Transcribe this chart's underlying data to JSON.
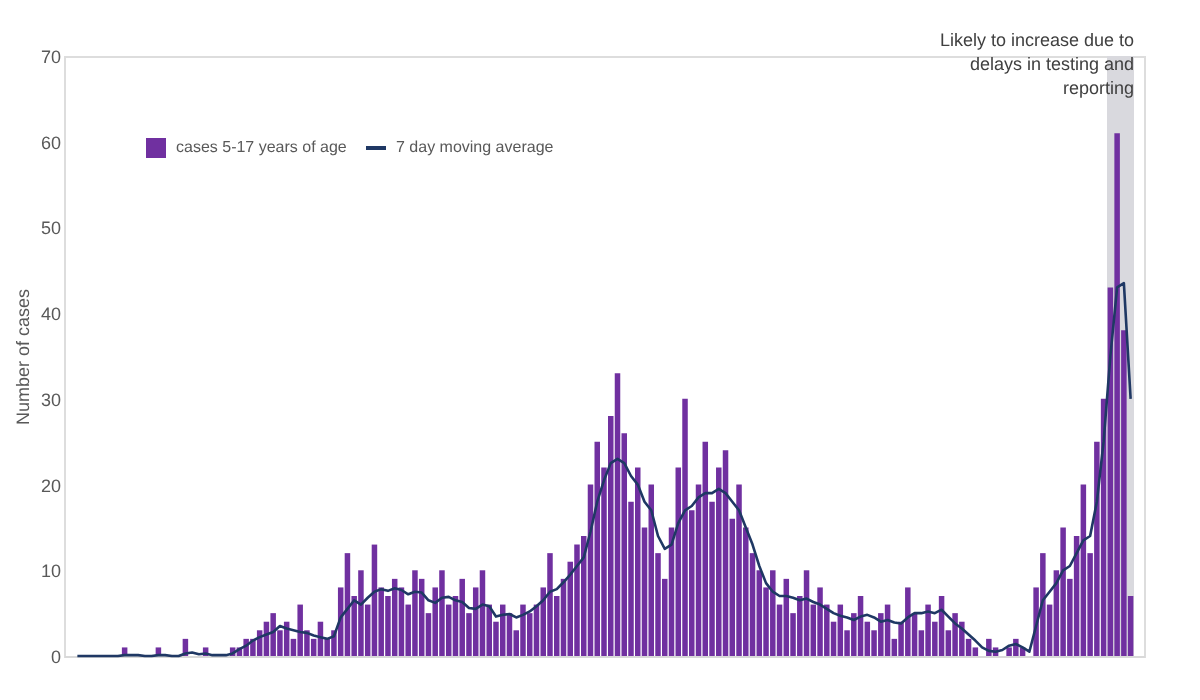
{
  "chart_data": {
    "type": "bar",
    "ylabel": "Number of cases",
    "categories": [
      null,
      null,
      null,
      null,
      null,
      null,
      null,
      null,
      null,
      null,
      null,
      null,
      null,
      null,
      null,
      null,
      null,
      null,
      null,
      null,
      null,
      null,
      null,
      null,
      null,
      null,
      null,
      null,
      null,
      null,
      null,
      null,
      null,
      null,
      null,
      null,
      null,
      null,
      null,
      null,
      null,
      null,
      null,
      null,
      null,
      null,
      null,
      null,
      null,
      null,
      null,
      null,
      null,
      null,
      null,
      null,
      null,
      null,
      null,
      null,
      null,
      null,
      null,
      null,
      null,
      null,
      null,
      null,
      null,
      null,
      null,
      null,
      null,
      null,
      null,
      null,
      null,
      null,
      null,
      null,
      null,
      null,
      null,
      null,
      null,
      null,
      null,
      null,
      null,
      null,
      null,
      null,
      null,
      null,
      null,
      null,
      null,
      null,
      null,
      null,
      null,
      null,
      null,
      null,
      null,
      null,
      null,
      null,
      null,
      null,
      null,
      null,
      null,
      null,
      null,
      null,
      null,
      null,
      null,
      null,
      null,
      null,
      null,
      null,
      null,
      null,
      null,
      null,
      null,
      null,
      null,
      null,
      null,
      null,
      null,
      null,
      null,
      null,
      null,
      null,
      null,
      null,
      null,
      null,
      null,
      null,
      null,
      null,
      null,
      null,
      null,
      null,
      null,
      null,
      null,
      null,
      null
    ],
    "series": [
      {
        "name": "cases 5-17 years of age",
        "color": "#7030a0",
        "values": [
          0,
          0,
          0,
          0,
          0,
          0,
          0,
          1,
          0,
          0,
          0,
          0,
          1,
          0,
          0,
          0,
          2,
          0,
          0,
          1,
          0,
          0,
          0,
          1,
          1,
          2,
          2,
          3,
          4,
          5,
          3,
          4,
          2,
          6,
          3,
          2,
          4,
          2,
          3,
          8,
          12,
          7,
          10,
          6,
          13,
          8,
          7,
          9,
          8,
          6,
          10,
          9,
          5,
          8,
          10,
          6,
          7,
          9,
          5,
          8,
          10,
          6,
          4,
          6,
          5,
          3,
          6,
          5,
          6,
          8,
          12,
          7,
          9,
          11,
          13,
          14,
          20,
          25,
          22,
          28,
          33,
          26,
          18,
          22,
          15,
          20,
          12,
          9,
          15,
          22,
          30,
          17,
          20,
          25,
          18,
          22,
          24,
          16,
          20,
          15,
          12,
          10,
          8,
          10,
          6,
          9,
          5,
          7,
          10,
          6,
          8,
          6,
          4,
          6,
          3,
          5,
          7,
          4,
          3,
          5,
          6,
          2,
          4,
          8,
          5,
          3,
          6,
          4,
          7,
          3,
          5,
          4,
          2,
          1,
          0,
          2,
          1,
          0,
          1,
          2,
          1,
          0,
          8,
          12,
          6,
          10,
          15,
          9,
          14,
          20,
          12,
          25,
          30,
          43,
          61,
          38,
          7
        ]
      },
      {
        "name": "7 day moving average",
        "type": "line",
        "color": "#1f3864",
        "values": [
          0,
          0,
          0,
          0,
          0,
          0,
          0,
          0.1,
          0.1,
          0.1,
          0,
          0,
          0.1,
          0.1,
          0,
          0,
          0.3,
          0.4,
          0.2,
          0.3,
          0.1,
          0.1,
          0.1,
          0.3,
          0.8,
          1.2,
          1.8,
          2.2,
          2.5,
          2.8,
          3.5,
          3.2,
          3,
          2.8,
          2.7,
          2.4,
          2.2,
          2,
          2.3,
          4.5,
          5.5,
          6.5,
          6,
          6.8,
          7.5,
          7.8,
          7.6,
          7.9,
          7.7,
          7.2,
          7.5,
          7.4,
          6.5,
          6.2,
          6.8,
          6.9,
          6.5,
          6.3,
          5.6,
          5.5,
          6,
          5.8,
          4.6,
          4.8,
          4.9,
          4.5,
          4.8,
          5.2,
          5.8,
          6.5,
          7.5,
          7.8,
          8.6,
          9.5,
          10.5,
          11.5,
          14.5,
          18,
          20.5,
          22.5,
          23,
          22.5,
          21,
          20,
          18,
          17,
          14,
          12.5,
          13,
          15.5,
          17,
          17.5,
          18.5,
          19,
          19,
          19.5,
          19,
          18,
          17,
          15,
          13,
          10.5,
          8.5,
          7.5,
          7,
          7,
          6.8,
          6.5,
          6.7,
          6.3,
          6,
          5.5,
          5,
          4.7,
          4.5,
          4.2,
          4.6,
          4.8,
          4.5,
          4,
          4.2,
          3.9,
          3.8,
          4.5,
          5,
          5,
          5.2,
          5,
          5.4,
          4.6,
          3.8,
          3.2,
          2.5,
          1.8,
          1,
          0.6,
          0.5,
          0.7,
          1.2,
          1.4,
          1,
          0.5,
          3.5,
          6.5,
          7.5,
          8.5,
          10,
          10.5,
          12,
          13.5,
          14,
          18,
          25,
          35,
          43,
          43.5,
          30
        ]
      }
    ],
    "ylim": [
      0,
      70
    ],
    "yticks": [
      0,
      10,
      20,
      30,
      40,
      50,
      60,
      70
    ],
    "tick_labels": "y",
    "annotations": [
      "Likely to increase due to delays in testing and reporting"
    ],
    "grid": false,
    "legend": "top left"
  }
}
